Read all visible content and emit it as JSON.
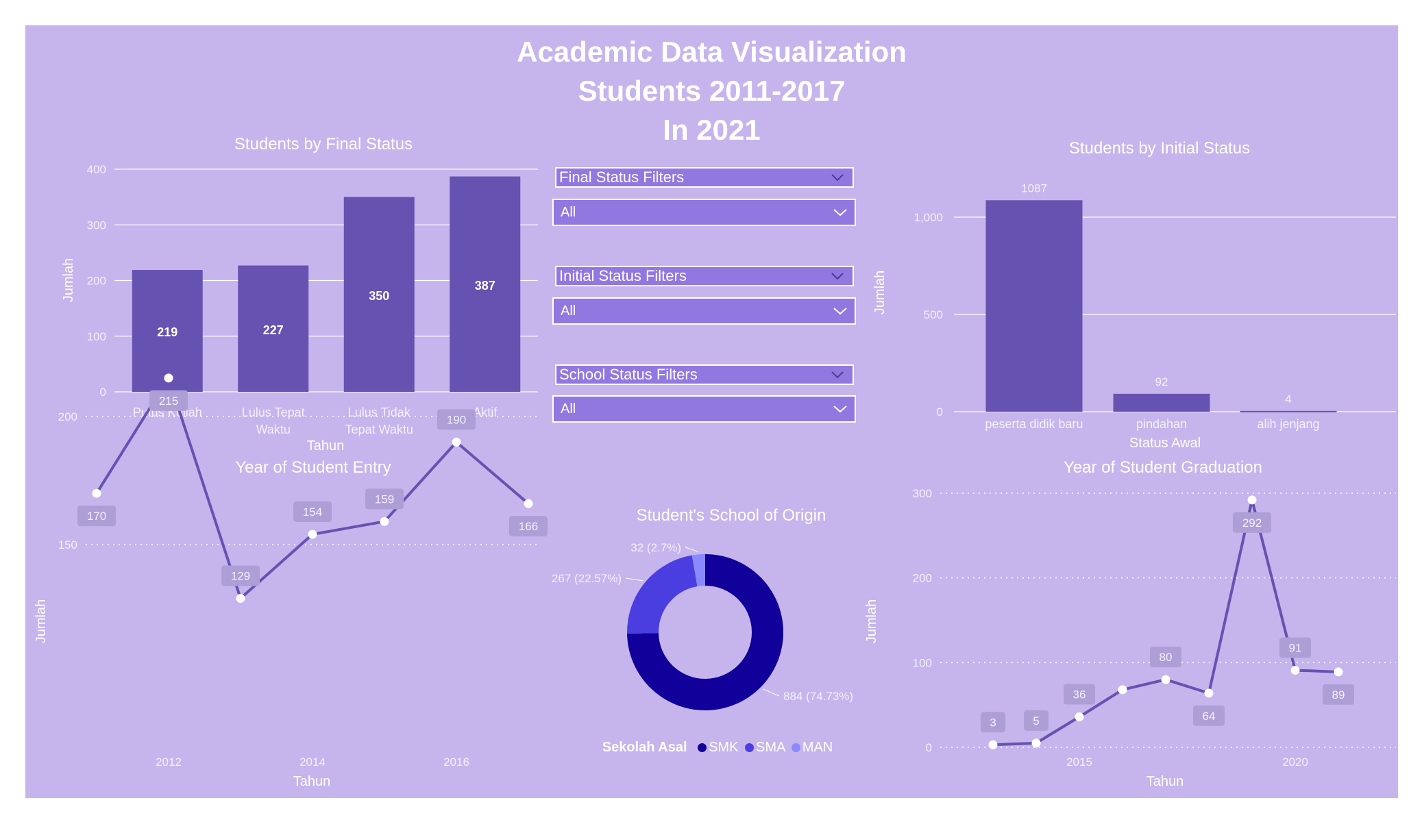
{
  "header": {
    "line1": "Academic Data Visualization",
    "line2": "Students 2011-2017",
    "line3": "In 2021"
  },
  "filters": [
    {
      "label": "Final Status Filters",
      "value": "All"
    },
    {
      "label": "Initial Status Filters",
      "value": "All"
    },
    {
      "label": "School Status Filters",
      "value": "All"
    }
  ],
  "colors": {
    "background": "#c5b5ec",
    "bar": "#6652b0",
    "line": "#6652b0",
    "smk": "#12009a",
    "sma": "#4a3ee0",
    "man": "#8a8aff"
  },
  "chart_data": [
    {
      "id": "final-status",
      "type": "bar",
      "title": "Students by Final Status",
      "xlabel": "Tahun",
      "ylabel": "Jumlah",
      "categories": [
        "Putus Kuliah",
        "Lulus Tepat Waktu",
        "Lulus Tidak Tepat Waktu",
        "Aktif"
      ],
      "category_lines": [
        [
          "Putus Kuliah"
        ],
        [
          "Lulus Tepat",
          "Waktu"
        ],
        [
          "Lulus Tidak",
          "Tepat Waktu"
        ],
        [
          "Aktif"
        ]
      ],
      "values": [
        219,
        227,
        350,
        387
      ],
      "ylim": [
        0,
        400
      ],
      "yticks": [
        0,
        100,
        200,
        300,
        400
      ],
      "ytick_labels": [
        "0",
        "100",
        "200",
        "300",
        "400"
      ],
      "grid": true
    },
    {
      "id": "initial-status",
      "type": "bar",
      "title": "Students by Initial Status",
      "xlabel": "Status Awal",
      "ylabel": "Jumlah",
      "categories": [
        "peserta didik baru",
        "pindahan",
        "alih jenjang"
      ],
      "values": [
        1087,
        92,
        4
      ],
      "ylim": [
        0,
        1000
      ],
      "yticks": [
        0,
        500,
        1000
      ],
      "ytick_labels": [
        "0",
        "500",
        "1,000"
      ],
      "grid": true
    },
    {
      "id": "entry-year",
      "type": "line",
      "title": "Year of Student Entry",
      "xlabel": "Tahun",
      "ylabel": "Jumlah",
      "x": [
        2011,
        2012,
        2013,
        2014,
        2015,
        2016,
        2017
      ],
      "values": [
        170,
        215,
        129,
        154,
        159,
        190,
        166
      ],
      "label_below": [
        true,
        true,
        false,
        false,
        false,
        false,
        true
      ],
      "xticks": [
        2012,
        2014,
        2016
      ],
      "yticks": [
        150,
        200
      ]
    },
    {
      "id": "school-origin",
      "type": "pie",
      "title": "Student's School of Origin",
      "legend_title": "Sekolah Asal",
      "labels": [
        "SMK",
        "SMA",
        "MAN"
      ],
      "values": [
        884,
        267,
        32
      ],
      "percent_labels": [
        "884 (74.73%)",
        "267 (22.57%)",
        "32 (2.7%)"
      ]
    },
    {
      "id": "graduation-year",
      "type": "line",
      "title": "Year of Student Graduation",
      "xlabel": "Tahun",
      "ylabel": "Jumlah",
      "x": [
        2013,
        2014,
        2015,
        2016,
        2017,
        2018,
        2019,
        2020,
        2021
      ],
      "values": [
        3,
        5,
        36,
        68,
        80,
        64,
        292,
        91,
        89
      ],
      "point_labels": [
        "3",
        "5",
        "36",
        "",
        "80",
        "64",
        "292",
        "91",
        "89"
      ],
      "label_below": [
        false,
        false,
        false,
        false,
        false,
        true,
        true,
        false,
        true
      ],
      "xticks": [
        2015,
        2020
      ],
      "yticks": [
        0,
        100,
        200,
        300
      ]
    }
  ]
}
